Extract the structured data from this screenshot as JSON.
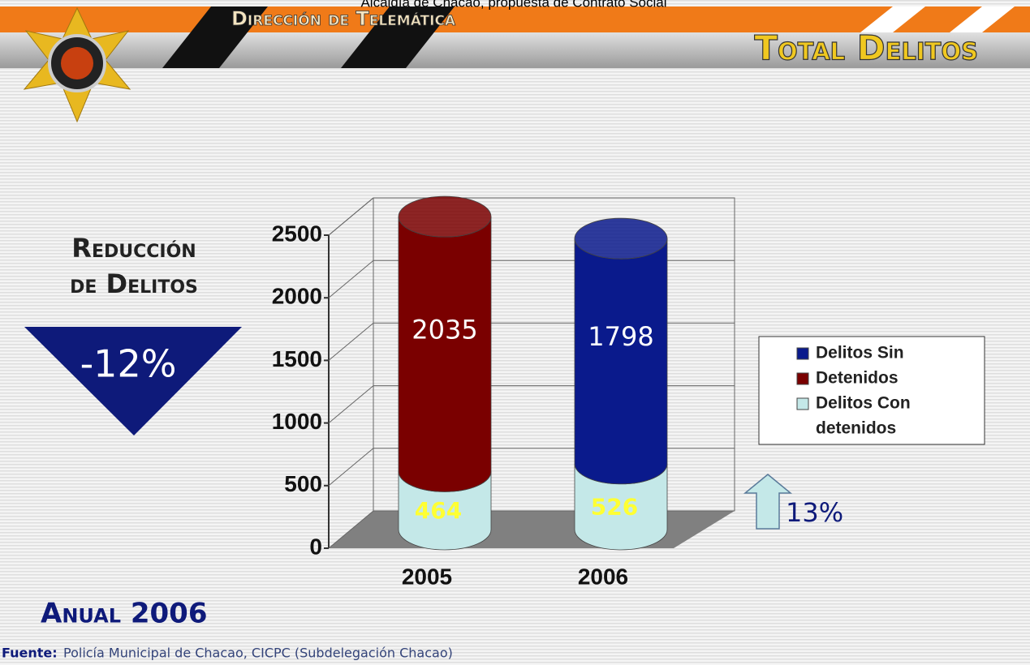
{
  "header": {
    "caption": "Alcaldía de Chacao, propuesta de Contrato Social",
    "department": "Dirección de Telemática",
    "title": "Total Delitos"
  },
  "side": {
    "heading_line1": "Reducción",
    "heading_line2": "de Delitos",
    "reduction": "-12%",
    "increase": "13%",
    "period": "Anual 2006"
  },
  "footer": {
    "source_label": "Fuente:",
    "source": "Policía Municipal de Chacao, CICPC (Subdelegación Chacao)"
  },
  "chart_data": {
    "type": "bar",
    "stacked": true,
    "categories": [
      "2005",
      "2006"
    ],
    "series": [
      {
        "name": "Delitos Con detenidos",
        "color": "#c4e8e8",
        "label_color": "#ffff33",
        "values": [
          464,
          526
        ]
      },
      {
        "colors": [
          "#7a0000",
          "#0a1a8c"
        ],
        "label_color": "#ffffff",
        "values": [
          2035,
          1798
        ]
      }
    ],
    "legend": [
      {
        "label": "Delitos Sin",
        "color": "#0a1a8c"
      },
      {
        "label": "Detenidos",
        "color": "#7a0000"
      },
      {
        "label": "Delitos Con",
        "color": "#c4e8e8"
      },
      {
        "label": "detenidos"
      }
    ],
    "ylim": [
      0,
      2500
    ],
    "yticks": [
      0,
      500,
      1000,
      1500,
      2000,
      2500
    ],
    "grid": true
  }
}
